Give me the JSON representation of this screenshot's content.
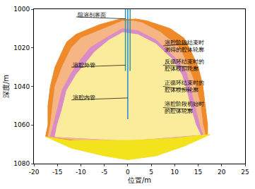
{
  "chart_data": {
    "type": "area",
    "xlabel": "位置/m",
    "ylabel": "深度/m",
    "xlim": [
      -20,
      25
    ],
    "xticks": [
      -20,
      -15,
      -10,
      -5,
      0,
      5,
      10,
      15,
      20,
      25
    ],
    "ylim": [
      1080,
      1000
    ],
    "yticks": [
      1000,
      1020,
      1040,
      1060,
      1080
    ],
    "grid": false,
    "legend": "none",
    "series": [
      {
        "type": "area",
        "color": "#ee8a2a",
        "x": [
          -1.5,
          -6,
          -11,
          -13,
          -14,
          -15.5,
          -16.5,
          -17,
          -17,
          -17.5,
          -12,
          -5,
          0,
          10,
          17,
          17,
          16.5,
          16,
          15,
          13.5,
          12,
          9,
          4,
          1.5
        ],
        "y": [
          1005,
          1008,
          1013,
          1017,
          1022,
          1030,
          1040,
          1050,
          1060,
          1066,
          1068,
          1068,
          1068,
          1067,
          1065,
          1060,
          1050,
          1040,
          1030,
          1022,
          1015,
          1010,
          1006,
          1005
        ]
      },
      {
        "type": "area",
        "color": "#f6b585",
        "x": [
          -1,
          -5,
          -10,
          -12,
          -14,
          -15.5,
          -16,
          -16.5,
          -17,
          -10,
          0,
          10,
          16.5,
          16,
          15.5,
          14.5,
          13,
          11,
          7,
          3,
          1
        ],
        "y": [
          1006,
          1010,
          1015,
          1020,
          1030,
          1040,
          1050,
          1060,
          1066,
          1068,
          1068,
          1067,
          1065,
          1060,
          1050,
          1040,
          1030,
          1020,
          1012,
          1007,
          1006
        ]
      },
      {
        "type": "area",
        "color": "#d98cc6",
        "x": [
          -1,
          -4,
          -8,
          -10,
          -12,
          -14,
          -15,
          -16,
          -16.5,
          0,
          16,
          15.5,
          14.5,
          13.5,
          12.5,
          10,
          6,
          2
        ],
        "y": [
          1010,
          1014,
          1020,
          1026,
          1033,
          1042,
          1052,
          1062,
          1066,
          1068,
          1065,
          1062,
          1052,
          1042,
          1033,
          1025,
          1016,
          1011
        ]
      },
      {
        "type": "area",
        "color": "#fbec9c",
        "x": [
          -1,
          -4,
          -7,
          -9,
          -11,
          -13,
          -14,
          -15,
          -15.5,
          0,
          15.5,
          14.5,
          13.5,
          12.5,
          11.5,
          9.5,
          6,
          2
        ],
        "y": [
          1012,
          1016,
          1022,
          1028,
          1034,
          1042,
          1052,
          1060,
          1066,
          1068,
          1065,
          1060,
          1052,
          1042,
          1034,
          1026,
          1018,
          1013
        ]
      },
      {
        "type": "area",
        "color": "#f3e31c",
        "x": [
          -17.5,
          -12,
          -5,
          0,
          6,
          12,
          17.5,
          17,
          10,
          0,
          -12
        ],
        "y": [
          1066,
          1072,
          1076,
          1078,
          1076,
          1071,
          1065,
          1065,
          1067,
          1068,
          1068
        ]
      },
      {
        "type": "line",
        "color": "#2a9d9a",
        "x": [
          -0.5,
          -0.5
        ],
        "y": [
          1000,
          1032
        ]
      },
      {
        "type": "line",
        "color": "#2a9d9a",
        "x": [
          0.5,
          0.5
        ],
        "y": [
          1000,
          1032
        ]
      },
      {
        "type": "line",
        "color": "#1e88e5",
        "x": [
          0,
          0
        ],
        "y": [
          1000,
          1057
        ]
      }
    ],
    "annotations": [
      {
        "text": "阻溶剂界面",
        "x": -11,
        "y": 1003,
        "point": [
          -0.5,
          1005
        ]
      },
      {
        "text": "溶腔外管",
        "x": -12,
        "y": 1029,
        "point": [
          -0.5,
          1029
        ]
      },
      {
        "text": "溶腔内管",
        "x": -12,
        "y": 1046,
        "point": [
          0,
          1046
        ]
      },
      {
        "text": "溶腔阶段结束时\n测得的腔体轮廓",
        "x": 7.5,
        "y": 1019,
        "point": [
          13,
          1018
        ]
      },
      {
        "text": "反循环结束时的\n腔体模拟轮廓",
        "x": 7.5,
        "y": 1029,
        "point": [
          13.5,
          1030
        ]
      },
      {
        "text": "正循环结束时的\n腔体模拟轮廓",
        "x": 7.5,
        "y": 1040,
        "point": [
          13.5,
          1042
        ]
      },
      {
        "text": "溶腔阶段初始时\n的腔体轮廓",
        "x": 7.5,
        "y": 1051,
        "point": [
          13.5,
          1052
        ]
      }
    ]
  }
}
